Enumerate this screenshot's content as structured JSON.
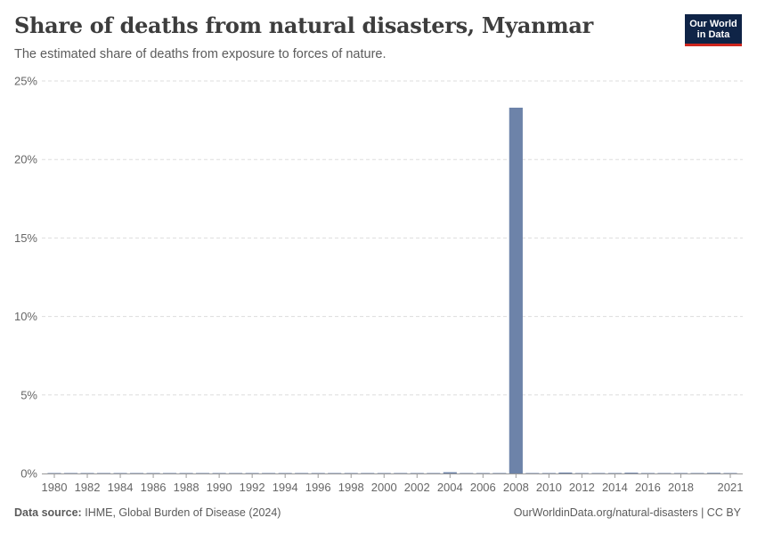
{
  "header": {
    "title": "Share of deaths from natural disasters, Myanmar",
    "subtitle": "The estimated share of deaths from exposure to forces of nature."
  },
  "logo": {
    "line1": "Our World",
    "line2": "in Data"
  },
  "footer": {
    "source_label": "Data source:",
    "source_text": "IHME, Global Burden of Disease (2024)",
    "link_text": "OurWorldinData.org/natural-disasters | CC BY"
  },
  "colors": {
    "bar": "#6d83a9",
    "grid": "#dddddd",
    "axis_text": "#666666"
  },
  "chart_data": {
    "type": "bar",
    "title": "Share of deaths from natural disasters, Myanmar",
    "xlabel": "",
    "ylabel": "",
    "ylim": [
      0,
      25
    ],
    "y_ticks": [
      0,
      5,
      10,
      15,
      20,
      25
    ],
    "y_tick_labels": [
      "0%",
      "5%",
      "10%",
      "15%",
      "20%",
      "25%"
    ],
    "x_ticks": [
      1980,
      1982,
      1984,
      1986,
      1988,
      1990,
      1992,
      1994,
      1996,
      1998,
      2000,
      2002,
      2004,
      2006,
      2008,
      2010,
      2012,
      2014,
      2016,
      2018,
      2021
    ],
    "x_tick_labels": [
      "1980",
      "1982",
      "1984",
      "1986",
      "1988",
      "1990",
      "1992",
      "1994",
      "1996",
      "1998",
      "2000",
      "2002",
      "2004",
      "2006",
      "2008",
      "2010",
      "2012",
      "2014",
      "2016",
      "2018",
      "2021"
    ],
    "unit": "%",
    "categories": [
      1980,
      1981,
      1982,
      1983,
      1984,
      1985,
      1986,
      1987,
      1988,
      1989,
      1990,
      1991,
      1992,
      1993,
      1994,
      1995,
      1996,
      1997,
      1998,
      1999,
      2000,
      2001,
      2002,
      2003,
      2004,
      2005,
      2006,
      2007,
      2008,
      2009,
      2010,
      2011,
      2012,
      2013,
      2014,
      2015,
      2016,
      2017,
      2018,
      2019,
      2020,
      2021
    ],
    "values": [
      0.01,
      0.01,
      0.01,
      0.01,
      0.01,
      0.01,
      0.01,
      0.01,
      0.01,
      0.01,
      0.01,
      0.01,
      0.01,
      0.01,
      0.01,
      0.01,
      0.01,
      0.01,
      0.01,
      0.01,
      0.01,
      0.01,
      0.01,
      0.01,
      0.08,
      0.01,
      0.01,
      0.01,
      23.3,
      0.01,
      0.01,
      0.06,
      0.01,
      0.01,
      0.01,
      0.05,
      0.02,
      0.01,
      0.01,
      0.01,
      0.04,
      0.01
    ]
  }
}
